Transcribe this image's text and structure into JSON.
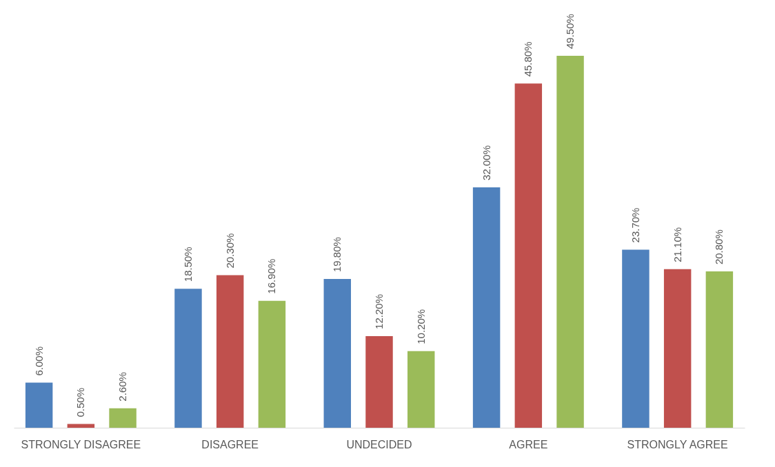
{
  "chart_data": {
    "type": "bar",
    "categories": [
      "STRONGLY DISAGREE",
      "DISAGREE",
      "UNDECIDED",
      "AGREE",
      "STRONGLY AGREE"
    ],
    "series": [
      {
        "color": "#4f81bd",
        "values": [
          6.0,
          18.5,
          19.8,
          32.0,
          23.7
        ],
        "value_labels": [
          "6.00%",
          "18.50%",
          "19.80%",
          "32.00%",
          "23.70%"
        ]
      },
      {
        "color": "#c0504d",
        "values": [
          0.5,
          20.3,
          12.2,
          45.8,
          21.1
        ],
        "value_labels": [
          "0.50%",
          "20.30%",
          "12.20%",
          "45.80%",
          "21.10%"
        ]
      },
      {
        "color": "#9bbb59",
        "values": [
          2.6,
          16.9,
          10.2,
          49.5,
          20.8
        ],
        "value_labels": [
          "2.60%",
          "16.90%",
          "10.20%",
          "49.50%",
          "20.80%"
        ]
      }
    ]
  }
}
